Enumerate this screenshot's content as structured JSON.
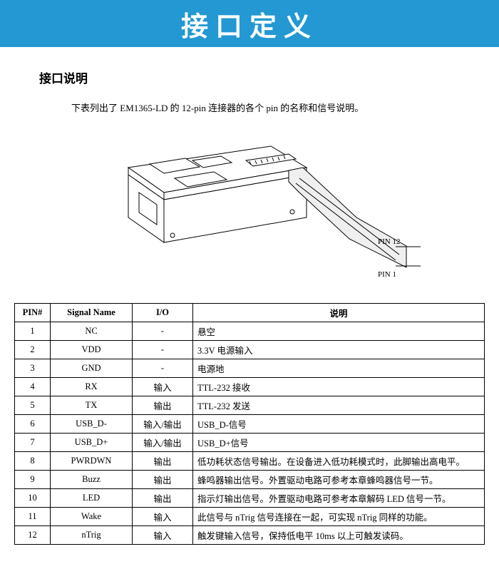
{
  "banner": {
    "title": "接口定义",
    "bg_color": "#2398d3",
    "title_color": "#ffffff",
    "title_fontsize": 38
  },
  "section": {
    "heading": "接口说明",
    "intro": "下表列出了 EM1365-LD 的 12-pin 连接器的各个 pin 的名称和信号说明。"
  },
  "diagram": {
    "pin12_label": "PIN 12",
    "pin1_label": "PIN 1",
    "line_color": "#000000",
    "shade_color": "#d9d9d9"
  },
  "table": {
    "headers": {
      "pin": "PIN#",
      "signal": "Signal Name",
      "io": "I/O",
      "desc": "说明"
    },
    "rows": [
      {
        "pin": "1",
        "signal": "NC",
        "io": "-",
        "desc": "悬空"
      },
      {
        "pin": "2",
        "signal": "VDD",
        "io": "-",
        "desc": "3.3V 电源输入"
      },
      {
        "pin": "3",
        "signal": "GND",
        "io": "-",
        "desc": "电源地"
      },
      {
        "pin": "4",
        "signal": "RX",
        "io": "输入",
        "desc": "TTL-232 接收"
      },
      {
        "pin": "5",
        "signal": "TX",
        "io": "输出",
        "desc": "TTL-232 发送"
      },
      {
        "pin": "6",
        "signal": "USB_D-",
        "io": "输入/输出",
        "desc": "USB_D-信号"
      },
      {
        "pin": "7",
        "signal": "USB_D+",
        "io": "输入/输出",
        "desc": "USB_D+信号"
      },
      {
        "pin": "8",
        "signal": "PWRDWN",
        "io": "输出",
        "desc": "低功耗状态信号输出。在设备进入低功耗模式时，此脚输出高电平。"
      },
      {
        "pin": "9",
        "signal": "Buzz",
        "io": "输出",
        "desc": "蜂鸣器输出信号。外置驱动电路可参考本章蜂鸣器信号一节。"
      },
      {
        "pin": "10",
        "signal": "LED",
        "io": "输出",
        "desc": "指示灯输出信号。外置驱动电路可参考本章解码 LED 信号一节。"
      },
      {
        "pin": "11",
        "signal": "Wake",
        "io": "输入",
        "desc": "此信号与 nTrig 信号连接在一起，可实现 nTrig 同样的功能。"
      },
      {
        "pin": "12",
        "signal": "nTrig",
        "io": "输入",
        "desc": "触发键输入信号，保持低电平 10ms 以上可触发读码。"
      }
    ],
    "border_color": "#000000",
    "fontsize": 12.5
  }
}
